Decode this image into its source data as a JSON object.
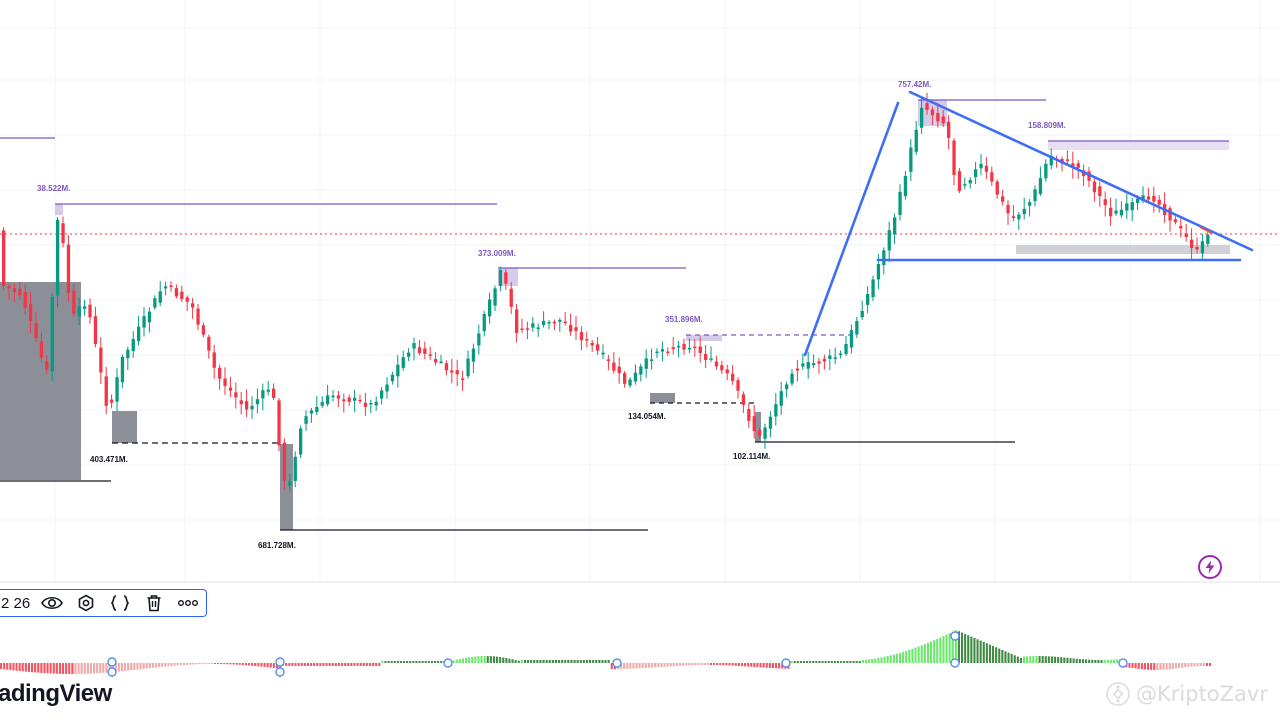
{
  "colors": {
    "up": "#089981",
    "down": "#f23645",
    "trendline": "#3d6ef5",
    "level_purple": "#7e57c2",
    "zone_purple": "#d1c4e9",
    "zone_gray": "#787b86",
    "level_black": "#131722",
    "osc_up_strong": "#5ce65c",
    "osc_up_weak": "#2e7d32",
    "osc_down_strong": "#f23645",
    "osc_down_weak": "#ef9a9a",
    "current_price_line": "#f23645",
    "grid": "#f0f3fa"
  },
  "annotations": {
    "high_1": "38.522M.",
    "high_2": "373.009M.",
    "high_3": "351.896M.",
    "high_4": "757.42M.",
    "high_5": "158.809M.",
    "low_1": "403.471M.",
    "low_2": "681.728M.",
    "low_3": "134.054M.",
    "low_4": "102.114M."
  },
  "toolbar": {
    "count": "2 26",
    "visibility_icon": "eye-icon",
    "settings_icon": "settings-hexagon-icon",
    "source_icon": "curly-braces-icon",
    "delete_icon": "trash-icon",
    "more_icon": "more-dots-icon"
  },
  "brand": {
    "text": "adingView"
  },
  "watermark": {
    "text": "@KriptoZavr",
    "icon": "binance-logo-icon"
  },
  "action_icon": "lightning-icon"
}
